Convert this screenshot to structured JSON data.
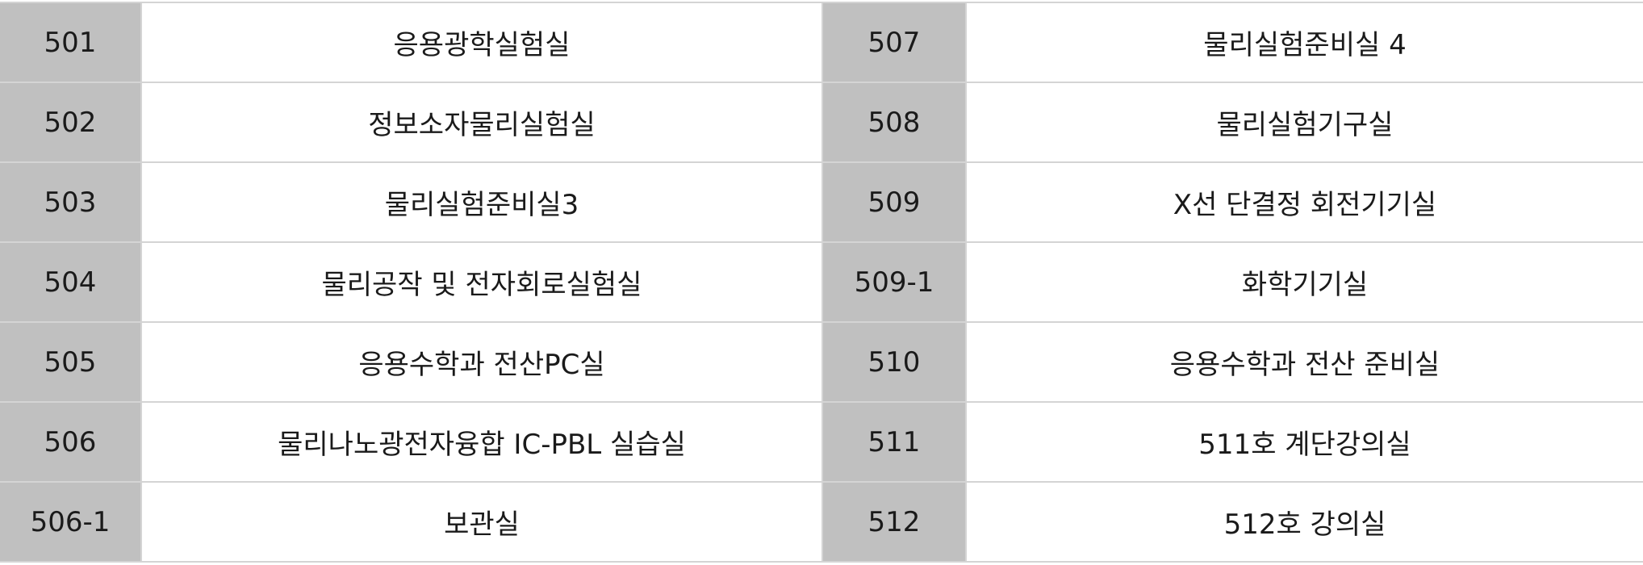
{
  "rows": [
    {
      "left_number": "501",
      "left_name": "응용광학실험실",
      "right_number": "507",
      "right_name": "물리실험준비실 4"
    },
    {
      "left_number": "502",
      "left_name": "정보소자물리실험실",
      "right_number": "508",
      "right_name": "물리실험기구실"
    },
    {
      "left_number": "503",
      "left_name": "물리실험준비실3",
      "right_number": "509",
      "right_name": "X선 단결정 회전기기실"
    },
    {
      "left_number": "504",
      "left_name": "물리공작 및 전자회로실험실",
      "right_number": "509-1",
      "right_name": "화학기기실"
    },
    {
      "left_number": "505",
      "left_name": "응용수학과 전산PC실",
      "right_number": "510",
      "right_name": "응용수학과 전산 준비실"
    },
    {
      "left_number": "506",
      "left_name": "물리나노광전자융합 IC-PBL 실습실",
      "right_number": "511",
      "right_name": "511호 계단강의실"
    },
    {
      "left_number": "506-1",
      "left_name": "보관실",
      "right_number": "512",
      "right_name": "512호 강의실"
    }
  ],
  "colors": {
    "number_cell_bg": "#c0c0c0",
    "name_cell_bg": "#ffffff",
    "border": "#d4d4d4",
    "text": "#1a1a1a"
  }
}
